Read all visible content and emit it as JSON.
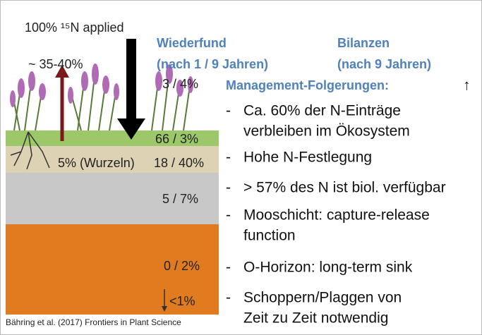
{
  "diagram": {
    "applied": "100% ¹⁵N applied",
    "emission": "~ 35-40%",
    "layers": [
      {
        "label": "3 / 4%"
      },
      {
        "label": "66 / 3%"
      },
      {
        "roots": "5% (Wurzeln)",
        "label": "18 / 40%"
      },
      {
        "label": "5 / 7%"
      },
      {
        "label": "0 / 2%"
      },
      {
        "label": "<1%"
      }
    ],
    "source": "Bähring et al. (2017) Frontiers in Plant Science"
  },
  "headers": {
    "recovery": [
      "Wiederfund",
      "(nach 1 / 9 Jahren)"
    ],
    "balance": [
      "Bilanzen",
      "(nach 9 Jahren)"
    ],
    "arrow": "↑",
    "management": "Management-Folgerungen:"
  },
  "bullets": [
    [
      "Ca. 60% der N-Einträge",
      "verbleiben im Ökosystem"
    ],
    [
      "Hohe N-Festlegung"
    ],
    [
      "> 57% des N ist biol. verfügbar"
    ],
    [
      "Mooschicht: capture-release",
      "function"
    ],
    [
      "O-Horizon: long-term sink"
    ],
    [
      "Schoppern/Plaggen von",
      "Zeit zu Zeit notwendig"
    ]
  ],
  "dash": "-"
}
